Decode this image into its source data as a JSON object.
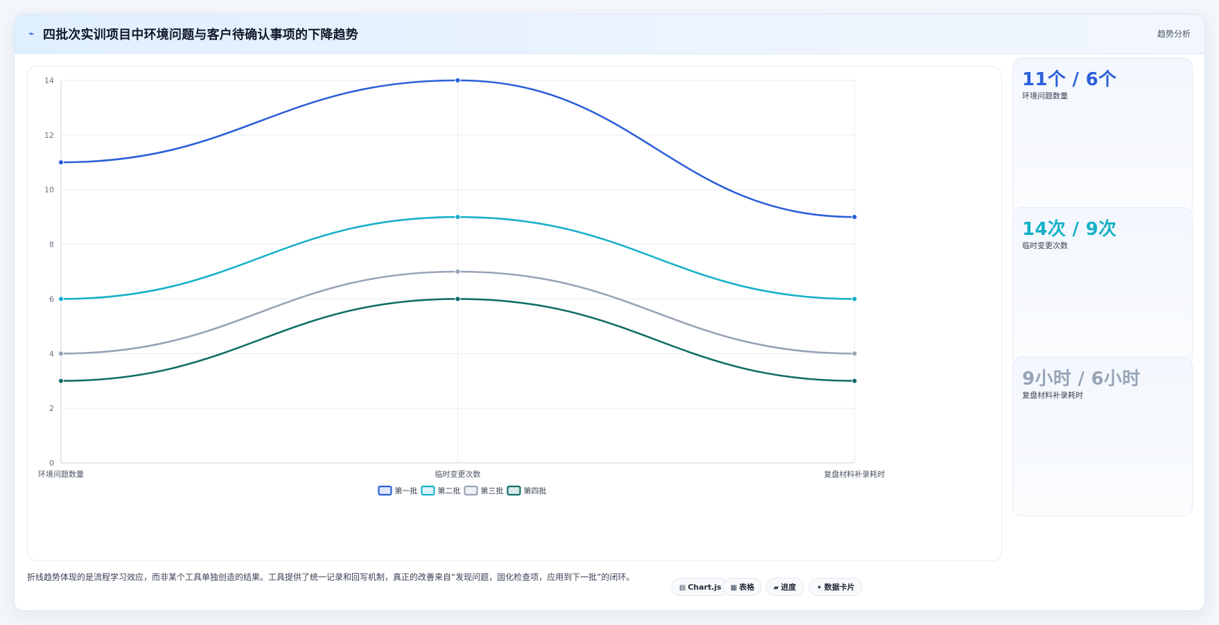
{
  "header": {
    "icon": "trend-line-icon",
    "title": "四批次实训项目中环境问题与客户待确认事项的下降趋势",
    "tag": "趋势分析"
  },
  "chart_data": {
    "type": "line",
    "categories": [
      "环境问题数量",
      "临时变更次数",
      "复盘材料补录耗时"
    ],
    "ylim": [
      0,
      14
    ],
    "yticks": [
      0,
      2,
      4,
      6,
      8,
      10,
      12,
      14
    ],
    "grid": true,
    "legend_position": "bottom",
    "series": [
      {
        "name": "第一批",
        "values": [
          11,
          14,
          9
        ],
        "color": "#2b5fd9"
      },
      {
        "name": "第二批",
        "values": [
          6,
          9,
          6
        ],
        "color": "#16b0c8"
      },
      {
        "name": "第三批",
        "values": [
          4,
          7,
          4
        ],
        "color": "#97a3b6"
      },
      {
        "name": "第四批",
        "values": [
          3,
          6,
          3
        ],
        "color": "#0f6e66"
      }
    ]
  },
  "kpis": [
    {
      "value": "11个 / 6个",
      "label": "环境问题数量",
      "color": "#2b5fd9"
    },
    {
      "value": "14次 / 9次",
      "label": "临时变更次数",
      "color": "#16b0c8"
    },
    {
      "value": "9小时 / 6小时",
      "label": "复盘材料补录耗时",
      "color": "#97a3b6"
    }
  ],
  "footer": {
    "note": "折线趋势体现的是流程学习效应，而非某个工具单独创造的结果。工具提供了统一记录和回写机制，真正的改善来自“发现问题，固化检查项，应用到下一批”的闭环。",
    "chips": [
      {
        "icon": "chart-icon",
        "glyph": "▤",
        "label": "Chart.js"
      },
      {
        "icon": "table-icon",
        "glyph": "▦",
        "label": "表格"
      },
      {
        "icon": "progress-icon",
        "glyph": "▰",
        "label": "进度"
      },
      {
        "icon": "sparkle-icon",
        "glyph": "✦",
        "label": "数据卡片"
      }
    ]
  }
}
